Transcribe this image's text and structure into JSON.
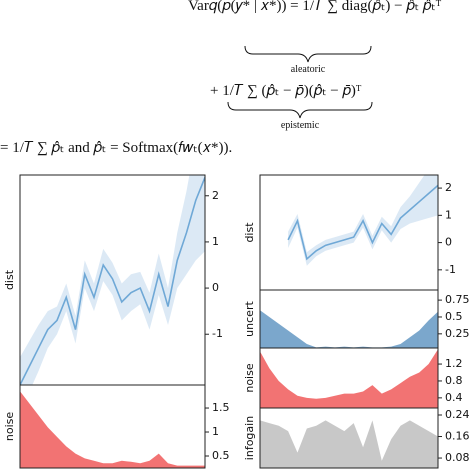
{
  "equation": {
    "line1": "Var𝑞(𝑝(𝑦* | 𝑥*)) = 1/𝑇 ∑ diag(𝑝̂ₜ) − 𝑝̂ₜ 𝑝̂ₜᵀ",
    "aleatoric": "aleatoric",
    "line2": "+ 1/𝑇 ∑ (𝑝̂ₜ − 𝑝̄)(𝑝̂ₜ − 𝑝̄)ᵀ",
    "epistemic": "epistemic",
    "line3": "= 1/𝑇 ∑ 𝑝̂ₜ and 𝑝̂ₜ = Softmax(𝑓𝑤ₜ(𝑥*))."
  },
  "figures": [
    {
      "panels": [
        {
          "label": "dist",
          "kind": "line",
          "color": "#6fa8d6",
          "band_color": "#d3e3f2",
          "ylim": [
            -2.1,
            2.45
          ],
          "yticks": [
            2,
            1,
            0,
            -1
          ],
          "values": [
            -2.1,
            -1.7,
            -1.3,
            -0.9,
            -0.7,
            -0.2,
            -0.9,
            0.3,
            -0.2,
            0.5,
            0.2,
            -0.3,
            -0.1,
            0.0,
            -0.5,
            0.3,
            -0.4,
            0.6,
            1.2,
            1.9,
            2.4
          ],
          "band": [
            0.6,
            0.55,
            0.5,
            0.4,
            0.3,
            0.3,
            0.3,
            0.3,
            0.3,
            0.35,
            0.35,
            0.4,
            0.4,
            0.35,
            0.4,
            0.45,
            0.4,
            0.6,
            0.9,
            1.3,
            1.6
          ]
        },
        {
          "label": "noise",
          "kind": "area",
          "color": "#f27373",
          "ylim": [
            0.25,
            1.98
          ],
          "yticks": [
            1.5,
            1.0,
            0.5
          ],
          "values": [
            1.85,
            1.6,
            1.35,
            1.1,
            0.9,
            0.7,
            0.55,
            0.45,
            0.4,
            0.35,
            0.35,
            0.4,
            0.38,
            0.35,
            0.4,
            0.55,
            0.35,
            0.3,
            0.3,
            0.3,
            0.3
          ]
        }
      ]
    },
    {
      "panels": [
        {
          "label": "dist",
          "kind": "line",
          "color": "#6fa8d6",
          "band_color": "#d3e3f2",
          "ylim": [
            -1.74,
            2.48
          ],
          "yticks": [
            2,
            1,
            0,
            -1
          ],
          "values": [
            null,
            null,
            null,
            0.1,
            0.8,
            -0.6,
            -0.3,
            -0.1,
            0.0,
            0.1,
            0.2,
            0.8,
            0.0,
            0.7,
            0.3,
            0.9,
            1.2,
            1.5,
            1.8,
            2.1
          ],
          "band": [
            null,
            null,
            null,
            0.3,
            0.25,
            0.25,
            0.2,
            0.2,
            0.2,
            0.2,
            0.2,
            0.25,
            0.25,
            0.25,
            0.3,
            0.4,
            0.5,
            0.7,
            0.9,
            1.1
          ]
        },
        {
          "label": "uncert",
          "kind": "area",
          "color": "#7ba7cc",
          "ylim": [
            0.04,
            0.9
          ],
          "yticks": [
            0.75,
            0.5,
            0.25
          ],
          "values": [
            0.6,
            0.5,
            0.4,
            0.3,
            0.2,
            0.1,
            0.05,
            0.06,
            0.05,
            0.06,
            0.05,
            0.06,
            0.05,
            0.05,
            0.06,
            0.1,
            0.2,
            0.3,
            0.45,
            0.58
          ]
        },
        {
          "label": "noise",
          "kind": "area",
          "color": "#f27373",
          "ylim": [
            0.16,
            1.58
          ],
          "yticks": [
            1.2,
            0.8,
            0.4
          ],
          "values": [
            1.5,
            1.1,
            0.8,
            0.6,
            0.45,
            0.4,
            0.38,
            0.4,
            0.45,
            0.5,
            0.5,
            0.55,
            0.7,
            0.5,
            0.6,
            0.75,
            0.9,
            1.0,
            1.2,
            1.55
          ]
        },
        {
          "label": "infogain",
          "kind": "area",
          "color": "#c8c8c8",
          "ylim": [
            0.043,
            0.266
          ],
          "yticks": [
            0.24,
            0.16,
            0.08
          ],
          "values": [
            0.22,
            0.21,
            0.2,
            0.18,
            0.1,
            0.19,
            0.2,
            0.22,
            0.2,
            0.18,
            0.21,
            0.12,
            0.22,
            0.07,
            0.15,
            0.2,
            0.22,
            0.2,
            0.18,
            0.16
          ]
        }
      ]
    }
  ]
}
